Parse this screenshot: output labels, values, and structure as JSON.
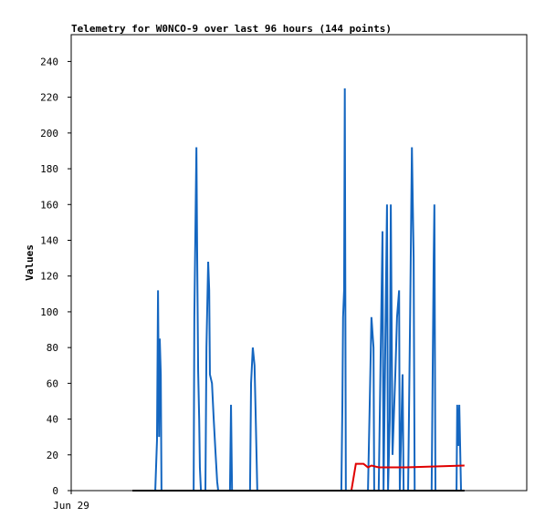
{
  "chart_data": {
    "type": "line",
    "title": "Telemetry for W0NCO-9 over last 96 hours (144 points)",
    "y_label": "Values",
    "xlim": [
      0,
      131.7
    ],
    "xticks": [
      {
        "value": 0,
        "label": "Jun 29"
      }
    ],
    "ylim": [
      0,
      255
    ],
    "yticks": [
      0,
      20,
      40,
      60,
      80,
      100,
      120,
      140,
      160,
      180,
      200,
      220,
      240
    ],
    "grid": false,
    "series": [
      {
        "color": "#1466c0",
        "x": [
          17.7,
          24.3,
          24.8,
          25.1,
          25.4,
          25.6,
          25.9,
          26.1,
          35.4,
          35.6,
          36.2,
          36.4,
          36.7,
          37.0,
          37.2,
          37.5,
          38.8,
          39.1,
          39.6,
          39.9,
          40.1,
          40.7,
          41.2,
          41.7,
          42.2,
          42.5,
          45.9,
          46.2,
          46.5,
          51.7,
          52.0,
          52.5,
          53.0,
          53.3,
          53.8,
          78.1,
          78.4,
          78.6,
          78.9,
          79.1,
          79.4,
          85.8,
          86.3,
          86.8,
          87.4,
          87.6,
          88.9,
          89.5,
          90.0,
          90.3,
          90.8,
          91.3,
          91.6,
          92.1,
          92.4,
          92.9,
          93.7,
          94.2,
          94.8,
          95.0,
          95.8,
          96.1,
          97.4,
          98.0,
          98.5,
          99.0,
          99.3,
          104.2,
          104.8,
          105.0,
          105.3,
          111.4,
          111.6,
          111.9,
          112.2,
          112.7,
          113.7
        ],
        "values": [
          0,
          0,
          28,
          112,
          30,
          85,
          65,
          0,
          0,
          97,
          192,
          137,
          67,
          40,
          13,
          0,
          0,
          80,
          128,
          112,
          65,
          60,
          40,
          22,
          5,
          0,
          0,
          48,
          0,
          0,
          60,
          80,
          70,
          45,
          0,
          0,
          48,
          97,
          112,
          225,
          0,
          0,
          48,
          97,
          80,
          0,
          0,
          80,
          145,
          0,
          80,
          160,
          0,
          40,
          160,
          20,
          65,
          97,
          112,
          0,
          65,
          0,
          0,
          100,
          192,
          130,
          0,
          0,
          130,
          160,
          0,
          0,
          48,
          25,
          48,
          0,
          0
        ]
      },
      {
        "color": "#e00000",
        "x": [
          17.7,
          81.0,
          82.3,
          84.5,
          85.8,
          86.8,
          88.9,
          96.8,
          113.7
        ],
        "values": [
          0,
          0,
          15,
          15,
          13,
          14,
          13,
          13,
          14
        ]
      },
      {
        "color": "#000000",
        "x": [
          17.7,
          113.7
        ],
        "values": [
          0,
          0
        ]
      }
    ]
  }
}
